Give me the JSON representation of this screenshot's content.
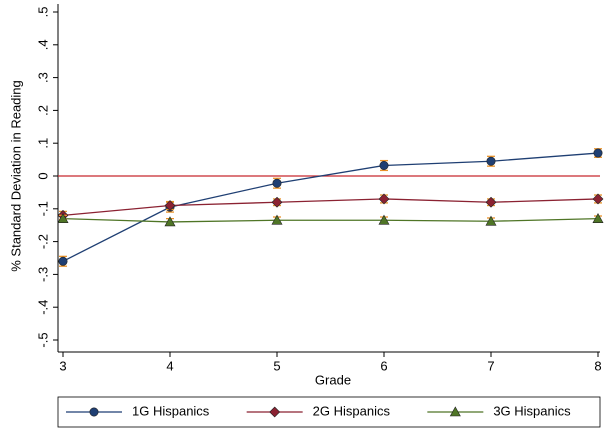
{
  "chart_data": {
    "type": "line",
    "x_label": "Grade",
    "y_label": "% Standard Deviation in Reading",
    "x": [
      3,
      4,
      5,
      6,
      7,
      8
    ],
    "xlim": [
      3,
      8
    ],
    "xticks": [
      3,
      4,
      5,
      6,
      7,
      8
    ],
    "ylim": [
      -0.5,
      0.5
    ],
    "yticks": [
      {
        "value": -0.5,
        "label": "-.5"
      },
      {
        "value": -0.4,
        "label": "-.4"
      },
      {
        "value": -0.3,
        "label": "-.3"
      },
      {
        "value": -0.2,
        "label": "-.2"
      },
      {
        "value": -0.1,
        "label": "-.1"
      },
      0,
      {
        "value": 0.1,
        "label": ".1"
      },
      {
        "value": 0.2,
        "label": ".2"
      },
      {
        "value": 0.3,
        "label": ".3"
      },
      {
        "value": 0.4,
        "label": ".4"
      },
      {
        "value": 0.5,
        "label": ".5"
      }
    ],
    "reference_line": {
      "value": 0,
      "color": "#c8282e"
    },
    "error_color": "#e8922a",
    "legend": "bottom",
    "series": [
      {
        "name": "1G Hispanics",
        "color": "#1f3f73",
        "marker": "circle",
        "values": [
          -0.26,
          -0.095,
          -0.022,
          0.032,
          0.045,
          0.07
        ],
        "errors": [
          0.015,
          0.015,
          0.015,
          0.015,
          0.015,
          0.013
        ]
      },
      {
        "name": "2G Hispanics",
        "color": "#8b2232",
        "marker": "diamond",
        "values": [
          -0.12,
          -0.09,
          -0.08,
          -0.07,
          -0.08,
          -0.07
        ],
        "errors": [
          0.012,
          0.012,
          0.01,
          0.012,
          0.01,
          0.012
        ]
      },
      {
        "name": "3G Hispanics",
        "color": "#4f7526",
        "marker": "triangle",
        "values": [
          -0.13,
          -0.14,
          -0.135,
          -0.135,
          -0.138,
          -0.13
        ],
        "errors": [
          0.01,
          0.01,
          0.01,
          0.01,
          0.01,
          0.008
        ]
      }
    ]
  }
}
